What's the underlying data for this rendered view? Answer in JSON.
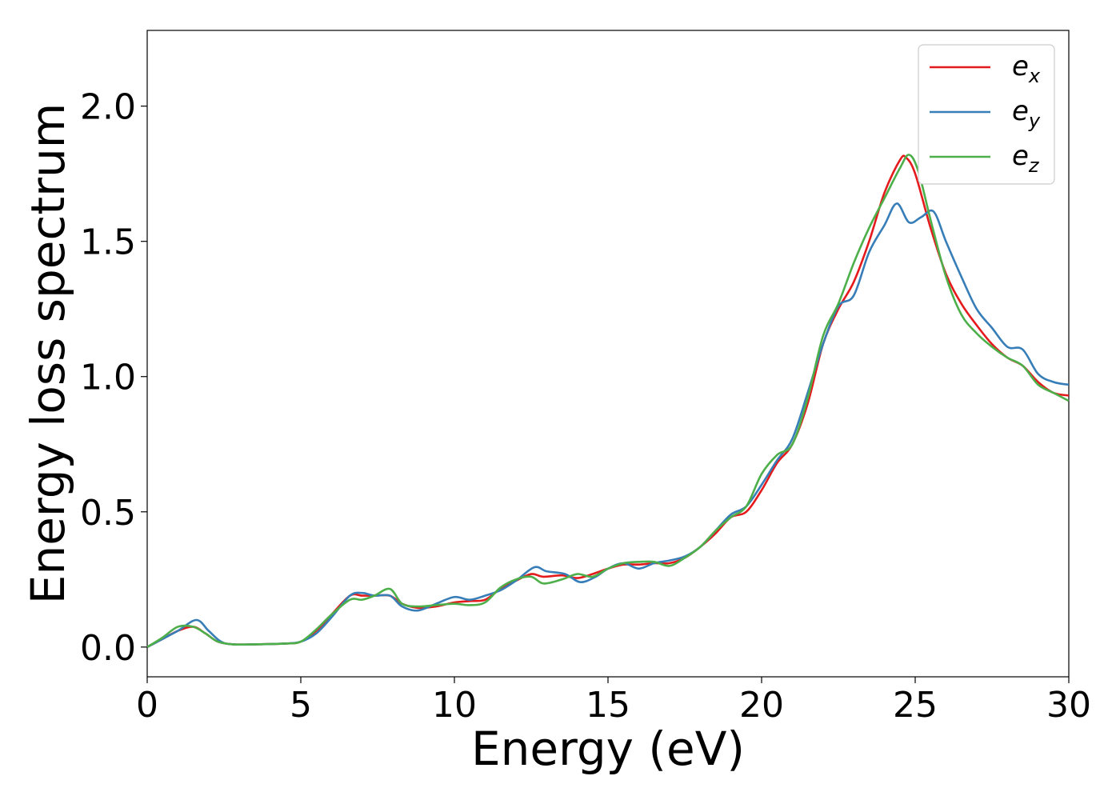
{
  "chart_data": {
    "type": "line",
    "xlabel": "Energy (eV)",
    "ylabel": "Energy loss spectrum",
    "xlim": [
      0,
      30
    ],
    "ylim": [
      -0.11,
      2.28
    ],
    "xticks": [
      0,
      5,
      10,
      15,
      20,
      25,
      30
    ],
    "xtick_labels": [
      "0",
      "5",
      "10",
      "15",
      "20",
      "25",
      "30"
    ],
    "yticks": [
      0.0,
      0.5,
      1.0,
      1.5,
      2.0
    ],
    "ytick_labels": [
      "0.0",
      "0.5",
      "1.0",
      "1.5",
      "2.0"
    ],
    "grid": false,
    "legend_position": "top-right",
    "series": [
      {
        "name_base": "e",
        "name_sub": "x",
        "color": "#e41a1c",
        "x": [
          0,
          0.5,
          1.0,
          1.5,
          1.9,
          2.3,
          2.8,
          3.5,
          4.5,
          5.0,
          5.5,
          6.0,
          6.6,
          7.0,
          7.4,
          7.9,
          8.3,
          8.8,
          9.4,
          10.0,
          10.5,
          11.0,
          11.5,
          12.0,
          12.5,
          12.9,
          13.5,
          14.0,
          14.5,
          15.0,
          15.5,
          16.0,
          16.5,
          17.0,
          17.5,
          18.0,
          18.5,
          19.0,
          19.5,
          20.0,
          20.5,
          21.0,
          21.5,
          22.0,
          22.5,
          23.0,
          23.5,
          24.0,
          24.5,
          24.7,
          25.0,
          25.5,
          26.0,
          26.5,
          27.0,
          27.5,
          28.0,
          28.5,
          29.0,
          29.5,
          30.0
        ],
        "y": [
          0.0,
          0.03,
          0.06,
          0.075,
          0.05,
          0.02,
          0.01,
          0.01,
          0.013,
          0.02,
          0.06,
          0.12,
          0.19,
          0.19,
          0.19,
          0.19,
          0.16,
          0.145,
          0.15,
          0.165,
          0.17,
          0.175,
          0.215,
          0.245,
          0.27,
          0.26,
          0.265,
          0.255,
          0.27,
          0.29,
          0.305,
          0.305,
          0.31,
          0.31,
          0.33,
          0.37,
          0.42,
          0.48,
          0.5,
          0.58,
          0.68,
          0.75,
          0.9,
          1.12,
          1.25,
          1.35,
          1.5,
          1.68,
          1.8,
          1.81,
          1.75,
          1.55,
          1.38,
          1.27,
          1.19,
          1.12,
          1.07,
          1.04,
          0.98,
          0.94,
          0.93
        ]
      },
      {
        "name_base": "e",
        "name_sub": "y",
        "color": "#377eb8",
        "x": [
          0,
          0.5,
          1.0,
          1.6,
          2.0,
          2.4,
          2.8,
          3.5,
          4.5,
          5.0,
          5.5,
          6.0,
          6.6,
          7.0,
          7.4,
          7.9,
          8.3,
          8.8,
          9.4,
          10.0,
          10.5,
          11.0,
          11.5,
          12.0,
          12.6,
          13.0,
          13.6,
          14.1,
          14.6,
          15.0,
          15.5,
          16.0,
          16.5,
          17.0,
          17.5,
          18.0,
          18.5,
          19.0,
          19.5,
          20.0,
          20.5,
          21.0,
          21.5,
          22.0,
          22.5,
          23.0,
          23.5,
          24.0,
          24.4,
          24.8,
          25.2,
          25.6,
          26.0,
          26.5,
          27.0,
          27.5,
          28.0,
          28.5,
          29.0,
          29.5,
          30.0
        ],
        "y": [
          0.0,
          0.03,
          0.06,
          0.1,
          0.06,
          0.02,
          0.01,
          0.01,
          0.013,
          0.02,
          0.05,
          0.11,
          0.19,
          0.2,
          0.19,
          0.19,
          0.15,
          0.135,
          0.16,
          0.185,
          0.175,
          0.19,
          0.21,
          0.245,
          0.295,
          0.28,
          0.27,
          0.24,
          0.26,
          0.29,
          0.31,
          0.29,
          0.31,
          0.32,
          0.335,
          0.37,
          0.43,
          0.49,
          0.52,
          0.6,
          0.69,
          0.77,
          0.94,
          1.12,
          1.26,
          1.3,
          1.46,
          1.56,
          1.64,
          1.57,
          1.59,
          1.61,
          1.5,
          1.37,
          1.25,
          1.18,
          1.11,
          1.1,
          1.01,
          0.98,
          0.97
        ]
      },
      {
        "name_base": "e",
        "name_sub": "z",
        "color": "#4daf4a",
        "x": [
          0,
          0.5,
          1.0,
          1.5,
          1.9,
          2.3,
          2.8,
          3.5,
          4.5,
          5.0,
          5.5,
          6.0,
          6.6,
          7.0,
          7.4,
          7.9,
          8.3,
          8.8,
          9.4,
          10.0,
          10.5,
          11.0,
          11.5,
          12.0,
          12.5,
          12.9,
          13.5,
          14.0,
          14.5,
          15.0,
          15.5,
          16.0,
          16.5,
          17.0,
          17.5,
          18.0,
          18.5,
          19.0,
          19.5,
          20.0,
          20.5,
          21.0,
          21.5,
          22.0,
          22.5,
          23.0,
          23.5,
          24.0,
          24.5,
          24.8,
          25.1,
          25.5,
          26.0,
          26.5,
          27.0,
          27.5,
          28.0,
          28.5,
          29.0,
          29.5,
          30.0
        ],
        "y": [
          0.0,
          0.035,
          0.075,
          0.075,
          0.05,
          0.02,
          0.01,
          0.01,
          0.013,
          0.02,
          0.065,
          0.12,
          0.175,
          0.175,
          0.19,
          0.215,
          0.16,
          0.15,
          0.155,
          0.16,
          0.155,
          0.165,
          0.22,
          0.25,
          0.26,
          0.235,
          0.25,
          0.27,
          0.26,
          0.29,
          0.31,
          0.315,
          0.315,
          0.3,
          0.33,
          0.37,
          0.43,
          0.48,
          0.52,
          0.64,
          0.71,
          0.75,
          0.92,
          1.15,
          1.27,
          1.42,
          1.55,
          1.66,
          1.77,
          1.82,
          1.76,
          1.58,
          1.37,
          1.23,
          1.16,
          1.11,
          1.07,
          1.04,
          0.97,
          0.94,
          0.91
        ]
      }
    ]
  }
}
